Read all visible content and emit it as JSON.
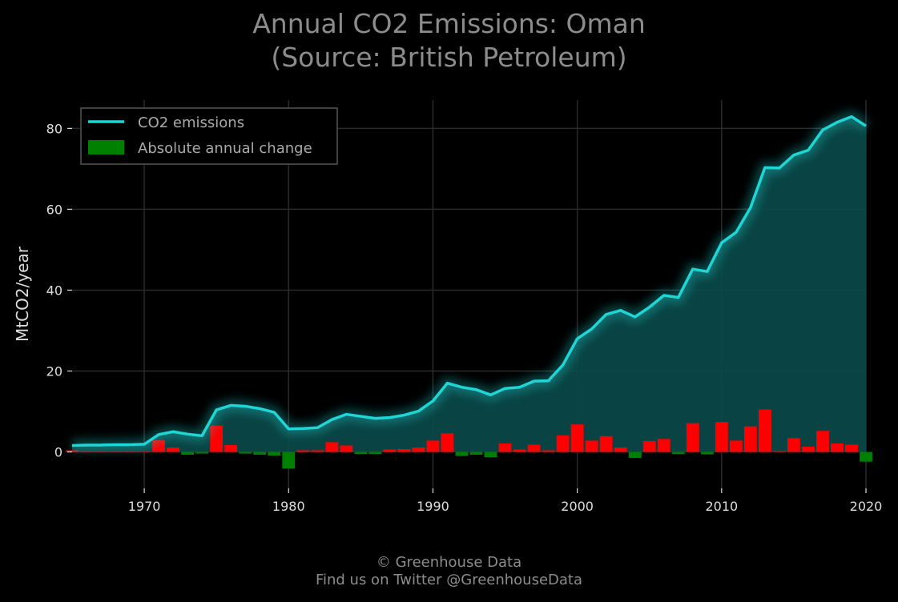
{
  "title_line1": "Annual CO2 Emissions: Oman",
  "title_line2": "(Source: British Petroleum)",
  "footer_line1": "© Greenhouse Data",
  "footer_line2": "Find us on Twitter @GreenhouseData",
  "colors": {
    "background": "#000000",
    "line": "#1fd6d6",
    "area": "#0b4a4a",
    "positive_change": "#ff0000",
    "negative_change": "#008000",
    "grid": "#2a2a2a",
    "text": "#dddddd",
    "title": "#8c8c8c"
  },
  "chart_data": {
    "type": "line",
    "title": "Annual CO2 Emissions: Oman\n(Source: British Petroleum)",
    "ylabel": "MtCO2/year",
    "xlabel": "",
    "xlim": [
      1965,
      2020
    ],
    "ylim": [
      -9,
      87
    ],
    "xticks": [
      1970,
      1980,
      1990,
      2000,
      2010,
      2020
    ],
    "yticks": [
      0,
      20,
      40,
      60,
      80
    ],
    "grid": true,
    "legend": {
      "position": "top-left",
      "entries": [
        "CO2 emissions",
        "Absolute annual change"
      ]
    },
    "series": [
      {
        "name": "CO2 emissions",
        "kind": "line",
        "x": [
          1965,
          1966,
          1967,
          1968,
          1969,
          1970,
          1971,
          1972,
          1973,
          1974,
          1975,
          1976,
          1977,
          1978,
          1979,
          1980,
          1981,
          1982,
          1983,
          1984,
          1985,
          1986,
          1987,
          1988,
          1989,
          1990,
          1991,
          1992,
          1993,
          1994,
          1995,
          1996,
          1997,
          1998,
          1999,
          2000,
          2001,
          2002,
          2003,
          2004,
          2005,
          2006,
          2007,
          2008,
          2009,
          2010,
          2011,
          2012,
          2013,
          2014,
          2015,
          2016,
          2017,
          2018,
          2019,
          2020
        ],
        "values": [
          1.6,
          1.7,
          1.7,
          1.8,
          1.8,
          1.9,
          4.3,
          5.0,
          4.4,
          4.0,
          10.4,
          11.5,
          11.3,
          10.7,
          9.8,
          5.7,
          5.8,
          6.0,
          8.0,
          9.3,
          8.8,
          8.3,
          8.5,
          9.1,
          10.1,
          12.6,
          17.0,
          16.0,
          15.4,
          14.1,
          15.7,
          16.0,
          17.5,
          17.6,
          21.5,
          28.0,
          30.4,
          34.0,
          35.0,
          33.4,
          35.8,
          38.7,
          38.2,
          45.2,
          44.6,
          51.7,
          54.3,
          60.4,
          70.3,
          70.2,
          73.4,
          74.6,
          79.6,
          81.5,
          82.9,
          80.6
        ]
      },
      {
        "name": "Absolute annual change",
        "kind": "bar",
        "x": [
          1965,
          1966,
          1967,
          1968,
          1969,
          1970,
          1971,
          1972,
          1973,
          1974,
          1975,
          1976,
          1977,
          1978,
          1979,
          1980,
          1981,
          1982,
          1983,
          1984,
          1985,
          1986,
          1987,
          1988,
          1989,
          1990,
          1991,
          1992,
          1993,
          1994,
          1995,
          1996,
          1997,
          1998,
          1999,
          2000,
          2001,
          2002,
          2003,
          2004,
          2005,
          2006,
          2007,
          2008,
          2009,
          2010,
          2011,
          2012,
          2013,
          2014,
          2015,
          2016,
          2017,
          2018,
          2019,
          2020
        ],
        "values": [
          0.4,
          0.1,
          0.1,
          0.1,
          0.1,
          0.1,
          2.9,
          1.1,
          -0.7,
          -0.4,
          6.5,
          1.7,
          -0.4,
          -0.7,
          -0.9,
          -4.1,
          0.4,
          0.4,
          2.4,
          1.6,
          -0.5,
          -0.5,
          0.6,
          0.7,
          1.1,
          2.8,
          4.6,
          -1.0,
          -0.7,
          -1.3,
          2.1,
          0.6,
          1.8,
          0.4,
          4.1,
          6.8,
          2.8,
          3.9,
          1.1,
          -1.5,
          2.7,
          3.2,
          -0.5,
          7.1,
          -0.6,
          7.4,
          2.8,
          6.3,
          10.5,
          0.2,
          3.4,
          1.3,
          5.2,
          2.1,
          1.8,
          -2.4
        ]
      }
    ]
  }
}
